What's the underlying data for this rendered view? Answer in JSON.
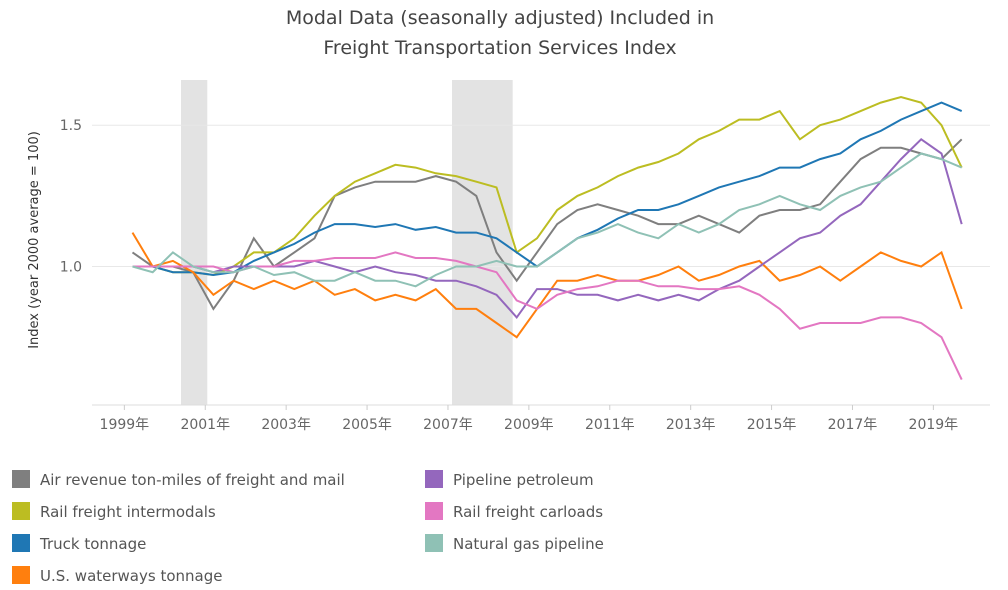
{
  "chart_data": {
    "type": "line",
    "title": [
      "Modal Data (seasonally adjusted) Included in",
      "Freight Transportation Services Index"
    ],
    "y_label": "Index (year 2000 average = 100)",
    "xlim": [
      1998.2,
      2020.4
    ],
    "ylim": [
      0.51,
      1.66
    ],
    "xticks": [
      {
        "value": 1999,
        "label": "1999年"
      },
      {
        "value": 2001,
        "label": "2001年"
      },
      {
        "value": 2003,
        "label": "2003年"
      },
      {
        "value": 2005,
        "label": "2005年"
      },
      {
        "value": 2007,
        "label": "2007年"
      },
      {
        "value": 2009,
        "label": "2009年"
      },
      {
        "value": 2011,
        "label": "2011年"
      },
      {
        "value": 2013,
        "label": "2013年"
      },
      {
        "value": 2015,
        "label": "2015年"
      },
      {
        "value": 2017,
        "label": "2017年"
      },
      {
        "value": 2019,
        "label": "2019年"
      }
    ],
    "yticks": [
      {
        "value": 1,
        "label": "1.0"
      },
      1.5
    ],
    "grid": true,
    "shaded_ranges": [
      [
        2000.4,
        2001.05
      ],
      [
        2007.1,
        2008.6
      ]
    ],
    "x": [
      1999.2,
      1999.7,
      2000.2,
      2000.7,
      2001.2,
      2001.7,
      2002.2,
      2002.7,
      2003.2,
      2003.7,
      2004.2,
      2004.7,
      2005.2,
      2005.7,
      2006.2,
      2006.7,
      2007.2,
      2007.7,
      2008.2,
      2008.7,
      2009.2,
      2009.7,
      2010.2,
      2010.7,
      2011.2,
      2011.7,
      2012.2,
      2012.7,
      2013.2,
      2013.7,
      2014.2,
      2014.7,
      2015.2,
      2015.7,
      2016.2,
      2016.7,
      2017.2,
      2017.7,
      2018.2,
      2018.7,
      2019.2,
      2019.7
    ],
    "series": [
      {
        "name": "Air revenue ton-miles of freight and mail",
        "color": "#7f7f7f",
        "values": [
          1.05,
          1.0,
          1.0,
          0.98,
          0.85,
          0.95,
          1.1,
          1.0,
          1.05,
          1.1,
          1.25,
          1.28,
          1.3,
          1.3,
          1.3,
          1.32,
          1.3,
          1.25,
          1.05,
          0.95,
          1.05,
          1.15,
          1.2,
          1.22,
          1.2,
          1.18,
          1.15,
          1.15,
          1.18,
          1.15,
          1.12,
          1.18,
          1.2,
          1.2,
          1.22,
          1.3,
          1.38,
          1.42,
          1.42,
          1.4,
          1.38,
          1.45
        ]
      },
      {
        "name": "Rail freight intermodals",
        "color": "#bcbd22",
        "values": [
          1.0,
          1.0,
          0.98,
          0.98,
          0.97,
          1.0,
          1.05,
          1.05,
          1.1,
          1.18,
          1.25,
          1.3,
          1.33,
          1.36,
          1.35,
          1.33,
          1.32,
          1.3,
          1.28,
          1.05,
          1.1,
          1.2,
          1.25,
          1.28,
          1.32,
          1.35,
          1.37,
          1.4,
          1.45,
          1.48,
          1.52,
          1.52,
          1.55,
          1.45,
          1.5,
          1.52,
          1.55,
          1.58,
          1.6,
          1.58,
          1.5,
          1.35
        ]
      },
      {
        "name": "Truck tonnage",
        "color": "#1f77b4",
        "values": [
          1.0,
          1.0,
          0.98,
          0.98,
          0.97,
          0.98,
          1.02,
          1.05,
          1.08,
          1.12,
          1.15,
          1.15,
          1.14,
          1.15,
          1.13,
          1.14,
          1.12,
          1.12,
          1.1,
          1.05,
          1.0,
          1.05,
          1.1,
          1.13,
          1.17,
          1.2,
          1.2,
          1.22,
          1.25,
          1.28,
          1.3,
          1.32,
          1.35,
          1.35,
          1.38,
          1.4,
          1.45,
          1.48,
          1.52,
          1.55,
          1.58,
          1.55
        ]
      },
      {
        "name": "U.S. waterways tonnage",
        "color": "#ff7f0e",
        "values": [
          1.12,
          1.0,
          1.02,
          0.98,
          0.9,
          0.95,
          0.92,
          0.95,
          0.92,
          0.95,
          0.9,
          0.92,
          0.88,
          0.9,
          0.88,
          0.92,
          0.85,
          0.85,
          0.8,
          0.75,
          0.85,
          0.95,
          0.95,
          0.97,
          0.95,
          0.95,
          0.97,
          1.0,
          0.95,
          0.97,
          1.0,
          1.02,
          0.95,
          0.97,
          1.0,
          0.95,
          1.0,
          1.05,
          1.02,
          1.0,
          1.05,
          0.85
        ]
      },
      {
        "name": "Pipeline petroleum",
        "color": "#9467bd",
        "values": [
          1.0,
          1.0,
          1.0,
          1.0,
          0.98,
          1.0,
          1.0,
          1.0,
          1.0,
          1.02,
          1.0,
          0.98,
          1.0,
          0.98,
          0.97,
          0.95,
          0.95,
          0.93,
          0.9,
          0.82,
          0.92,
          0.92,
          0.9,
          0.9,
          0.88,
          0.9,
          0.88,
          0.9,
          0.88,
          0.92,
          0.95,
          1.0,
          1.05,
          1.1,
          1.12,
          1.18,
          1.22,
          1.3,
          1.38,
          1.45,
          1.4,
          1.15
        ]
      },
      {
        "name": "Rail freight carloads",
        "color": "#e377c2",
        "values": [
          1.0,
          1.0,
          1.0,
          1.0,
          1.0,
          0.98,
          1.0,
          1.0,
          1.02,
          1.02,
          1.03,
          1.03,
          1.03,
          1.05,
          1.03,
          1.03,
          1.02,
          1.0,
          0.98,
          0.88,
          0.85,
          0.9,
          0.92,
          0.93,
          0.95,
          0.95,
          0.93,
          0.93,
          0.92,
          0.92,
          0.93,
          0.9,
          0.85,
          0.78,
          0.8,
          0.8,
          0.8,
          0.82,
          0.82,
          0.8,
          0.75,
          0.6
        ]
      },
      {
        "name": "Natural gas pipeline",
        "color": "#8fc1b5",
        "values": [
          1.0,
          0.98,
          1.05,
          1.0,
          0.98,
          0.98,
          1.0,
          0.97,
          0.98,
          0.95,
          0.95,
          0.98,
          0.95,
          0.95,
          0.93,
          0.97,
          1.0,
          1.0,
          1.02,
          1.0,
          1.0,
          1.05,
          1.1,
          1.12,
          1.15,
          1.12,
          1.1,
          1.15,
          1.12,
          1.15,
          1.2,
          1.22,
          1.25,
          1.22,
          1.2,
          1.25,
          1.28,
          1.3,
          1.35,
          1.4,
          1.38,
          1.35
        ]
      }
    ]
  }
}
